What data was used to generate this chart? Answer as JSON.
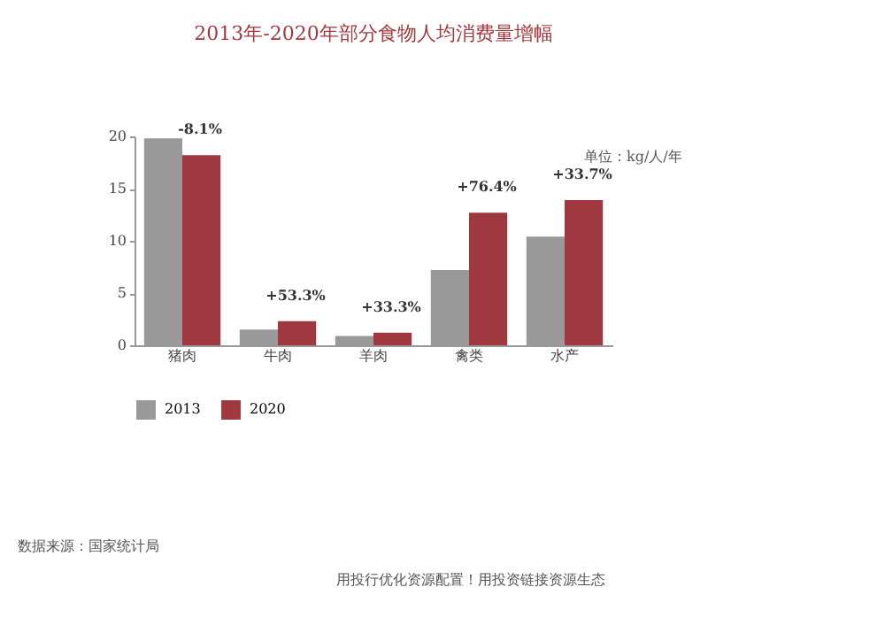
{
  "chart_data": {
    "type": "bar",
    "title": "2013年-2020年部分食物人均消费量增幅",
    "categories": [
      "猪肉",
      "牛肉",
      "羊肉",
      "禽类",
      "水产"
    ],
    "series": [
      {
        "name": "2013",
        "color": "#999999",
        "values": [
          19.8,
          1.5,
          0.9,
          7.2,
          10.4
        ]
      },
      {
        "name": "2020",
        "color": "#a0393f",
        "values": [
          18.2,
          2.3,
          1.2,
          12.7,
          13.9
        ]
      }
    ],
    "ylim": [
      0,
      20
    ],
    "yticks": [
      0,
      5,
      10,
      15,
      20
    ],
    "grid": false,
    "legend": "bottom left",
    "annotations": [
      "单位：kg/人/年",
      {
        "text": "-8.1%",
        "x": "猪肉",
        "y": 18.2
      },
      {
        "text": "+53.3%",
        "x": "牛肉",
        "y": 2.3
      },
      {
        "text": "+33.3%",
        "x": "羊肉",
        "y": 1.2
      },
      {
        "text": "+76.4%",
        "x": "禽类",
        "y": 12.7
      },
      {
        "text": "+33.7%",
        "x": "水产",
        "y": 13.9
      },
      "数据来源：国家统计局",
      "用投行优化资源配置！用投资链接资源生态"
    ]
  }
}
